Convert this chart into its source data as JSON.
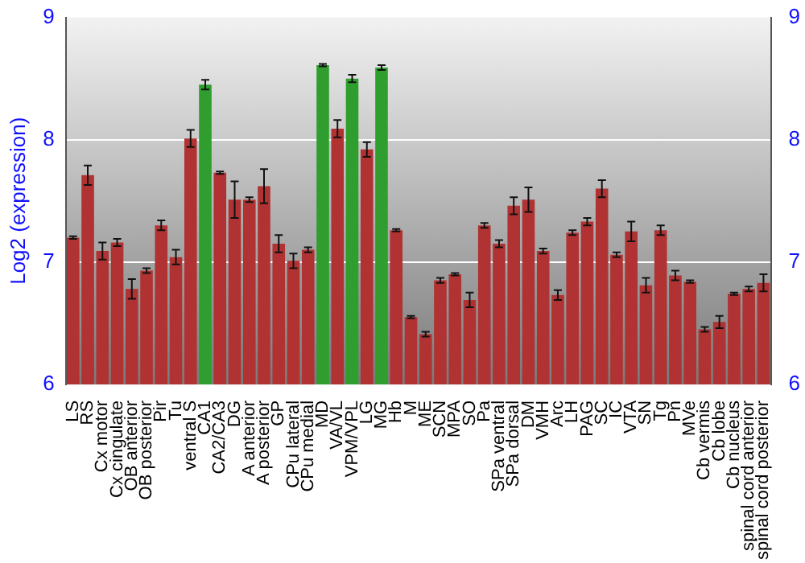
{
  "chart_data": {
    "type": "bar",
    "ylabel": "Log2 (expression)",
    "categories": [
      "LS",
      "RS",
      "Cx motor",
      "Cx cingulate",
      "OB anterior",
      "OB posterior",
      "Pir",
      "Tu",
      "ventral S",
      "CA1",
      "CA2/CA3",
      "DG",
      "A anterior",
      "A posterior",
      "GP",
      "CPu lateral",
      "CPu medial",
      "MD",
      "VA/VL",
      "VPM/VPL",
      "LG",
      "MG",
      "Hb",
      "M",
      "ME",
      "SCN",
      "MPA",
      "SO",
      "Pa",
      "SPa ventral",
      "SPa dorsal",
      "DM",
      "VMH",
      "Arc",
      "LH",
      "PAG",
      "SC",
      "IC",
      "VTA",
      "SN",
      "Tg",
      "Pn",
      "MVe",
      "Cb vermis",
      "Cb lobe",
      "Cb nucleus",
      "spinal cord anterior",
      "spinal cord posterior"
    ],
    "values": [
      7.2,
      7.71,
      7.09,
      7.16,
      6.78,
      6.93,
      7.3,
      7.04,
      8.01,
      8.45,
      7.73,
      7.51,
      7.51,
      7.62,
      7.15,
      7.01,
      7.1,
      8.61,
      8.09,
      8.5,
      7.92,
      8.59,
      7.26,
      6.55,
      6.41,
      6.85,
      6.9,
      6.69,
      7.3,
      7.15,
      7.46,
      7.51,
      7.09,
      6.73,
      7.24,
      7.33,
      7.6,
      7.06,
      7.25,
      6.81,
      7.26,
      6.89,
      6.84,
      6.45,
      6.51,
      6.74,
      6.78,
      6.83
    ],
    "errors": [
      0.01,
      0.08,
      0.07,
      0.03,
      0.08,
      0.02,
      0.04,
      0.06,
      0.07,
      0.04,
      0.01,
      0.15,
      0.02,
      0.14,
      0.07,
      0.06,
      0.02,
      0.01,
      0.07,
      0.03,
      0.06,
      0.02,
      0.01,
      0.01,
      0.02,
      0.02,
      0.01,
      0.06,
      0.02,
      0.03,
      0.07,
      0.1,
      0.02,
      0.04,
      0.02,
      0.03,
      0.07,
      0.02,
      0.08,
      0.06,
      0.04,
      0.04,
      0.01,
      0.02,
      0.05,
      0.01,
      0.02,
      0.07
    ],
    "colors": [
      "#b03232",
      "#b03232",
      "#b03232",
      "#b03232",
      "#b03232",
      "#b03232",
      "#b03232",
      "#b03232",
      "#b03232",
      "#2f9e2f",
      "#b03232",
      "#b03232",
      "#b03232",
      "#b03232",
      "#b03232",
      "#b03232",
      "#b03232",
      "#2f9e2f",
      "#b03232",
      "#2f9e2f",
      "#b03232",
      "#2f9e2f",
      "#b03232",
      "#b03232",
      "#b03232",
      "#b03232",
      "#b03232",
      "#b03232",
      "#b03232",
      "#b03232",
      "#b03232",
      "#b03232",
      "#b03232",
      "#b03232",
      "#b03232",
      "#b03232",
      "#b03232",
      "#b03232",
      "#b03232",
      "#b03232",
      "#b03232",
      "#b03232",
      "#b03232",
      "#b03232",
      "#b03232",
      "#b03232",
      "#b03232",
      "#b03232"
    ],
    "ylim": [
      6,
      9
    ],
    "yticks": [
      6,
      7,
      8,
      9
    ],
    "y2lim": [
      6,
      9
    ],
    "y2ticks": [
      6,
      7,
      8,
      9
    ],
    "grid": "y",
    "legend": false
  }
}
